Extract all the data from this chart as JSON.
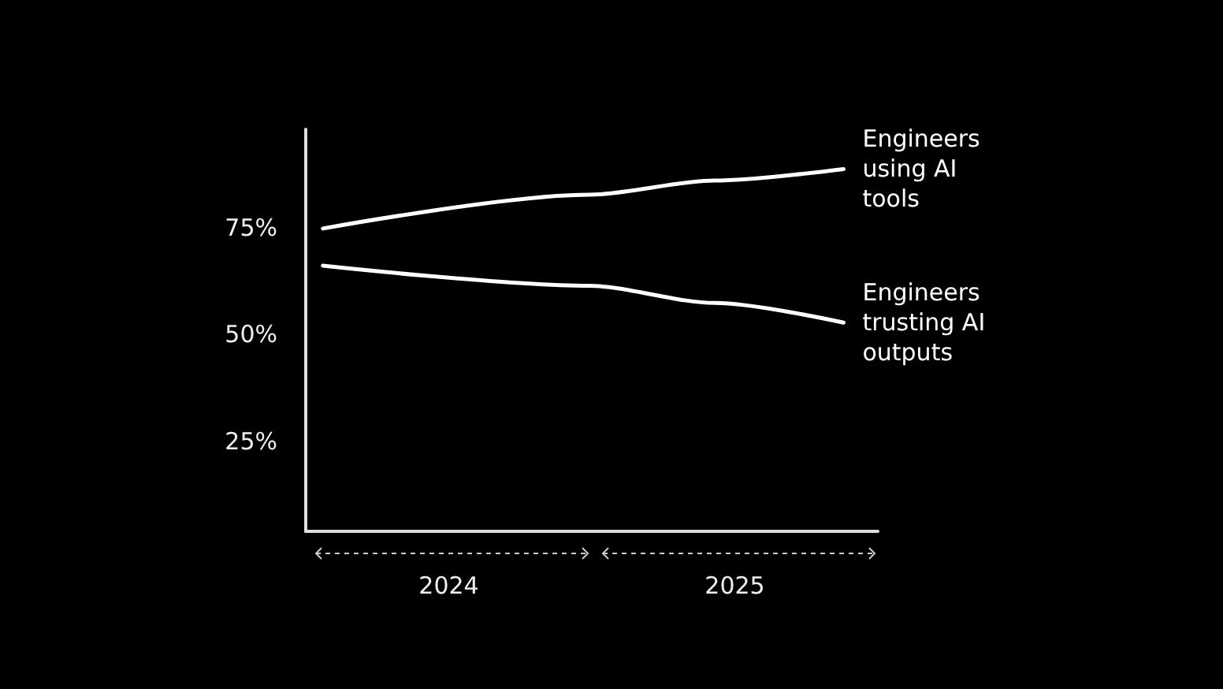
{
  "chart_data": {
    "type": "line",
    "xlim": [
      2024,
      2026
    ],
    "xticks": [
      {
        "value": 2024.5,
        "label": "2024"
      },
      {
        "value": 2025.5,
        "label": "2025"
      }
    ],
    "ylim": [
      4,
      98
    ],
    "yticks": [
      {
        "value": 25,
        "label": "25%"
      },
      {
        "value": 50,
        "label": "50%"
      },
      {
        "value": 75,
        "label": "75%"
      }
    ],
    "grid": false,
    "legend": false,
    "marker": "none",
    "line_style": "solid",
    "series": [
      {
        "name": "Engineers using AI tools",
        "color": "#ffffff",
        "x": [
          2024.06,
          2024.99,
          2025.43,
          2025.88
        ],
        "values": [
          74.8,
          82.7,
          86.0,
          88.7
        ]
      },
      {
        "name": "Engineers trusting AI outputs",
        "color": "#ffffff",
        "x": [
          2024.06,
          2024.99,
          2025.43,
          2025.88
        ],
        "values": [
          66.1,
          61.4,
          57.4,
          52.8
        ]
      }
    ]
  }
}
